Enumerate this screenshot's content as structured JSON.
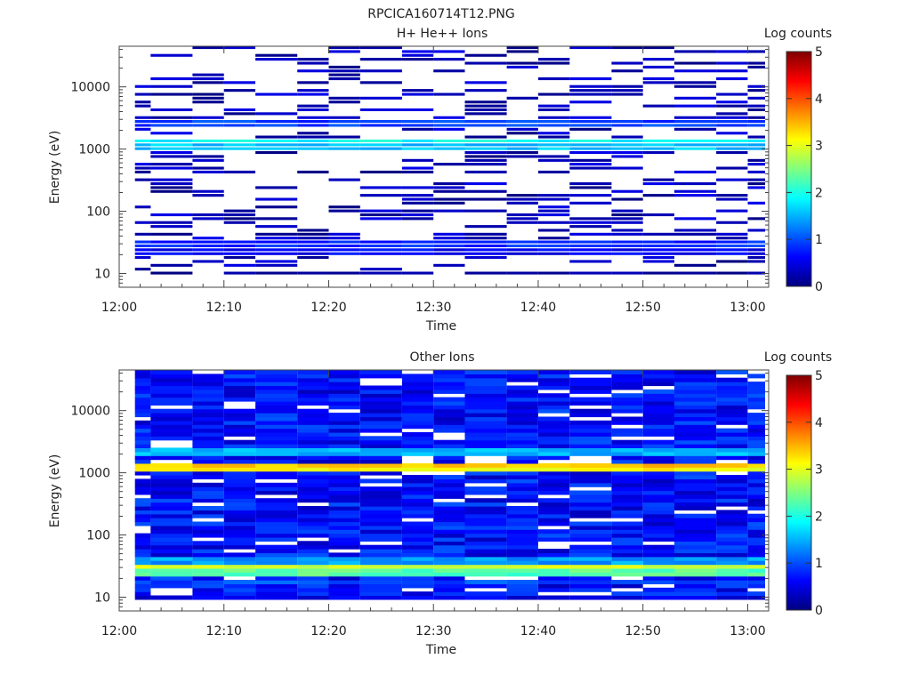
{
  "figure_title": "RPCICA160714T12.PNG",
  "chart_data": [
    {
      "type": "heatmap",
      "title": "H+ He++ Ions",
      "xlabel": "Time",
      "ylabel": "Energy (eV)",
      "xticks": [
        "12:00",
        "12:10",
        "12:20",
        "12:30",
        "12:40",
        "12:50",
        "13:00"
      ],
      "xlim": [
        "12:00",
        "13:02"
      ],
      "yscale": "log",
      "ylim": [
        6,
        45000
      ],
      "yticks": [
        "10",
        "100",
        "1000",
        "10000"
      ],
      "colorbar": {
        "label": "Log counts",
        "range": [
          0,
          5
        ],
        "ticks": [
          "0",
          "1",
          "2",
          "3",
          "4",
          "5"
        ]
      },
      "colormap": "jet",
      "note_sparse": true,
      "time_columns": [
        "12:00",
        "12:03",
        "12:07",
        "12:10",
        "12:13",
        "12:17",
        "12:20",
        "12:23",
        "12:27",
        "12:30",
        "12:33",
        "12:37",
        "12:40",
        "12:43",
        "12:47",
        "12:50",
        "12:53",
        "12:57",
        "13:00"
      ],
      "bands": [
        {
          "energy_eV": 10,
          "log_counts": 0.1
        },
        {
          "energy_eV": 22,
          "log_counts": 0.6
        },
        {
          "energy_eV": 30,
          "log_counts": 0.8
        },
        {
          "energy_eV": 1100,
          "log_counts": 1.6
        },
        {
          "energy_eV": 1300,
          "log_counts": 1.9
        },
        {
          "energy_eV": 2500,
          "log_counts": 0.9
        }
      ]
    },
    {
      "type": "heatmap",
      "title": "Other Ions",
      "xlabel": "Time",
      "ylabel": "Energy (eV)",
      "xticks": [
        "12:00",
        "12:10",
        "12:20",
        "12:30",
        "12:40",
        "12:50",
        "13:00"
      ],
      "xlim": [
        "12:00",
        "13:02"
      ],
      "yscale": "log",
      "ylim": [
        6,
        45000
      ],
      "yticks": [
        "10",
        "100",
        "1000",
        "10000"
      ],
      "colorbar": {
        "label": "Log counts",
        "range": [
          0,
          5
        ],
        "ticks": [
          "0",
          "1",
          "2",
          "3",
          "4",
          "5"
        ]
      },
      "colormap": "jet",
      "note_sparse": false,
      "time_columns": [
        "12:00",
        "12:03",
        "12:07",
        "12:10",
        "12:13",
        "12:17",
        "12:20",
        "12:23",
        "12:27",
        "12:30",
        "12:33",
        "12:37",
        "12:40",
        "12:43",
        "12:47",
        "12:50",
        "12:53",
        "12:57",
        "13:00"
      ],
      "bands": [
        {
          "energy_eV": 10,
          "log_counts": 0.5
        },
        {
          "energy_eV": 17,
          "log_counts": 1.0
        },
        {
          "energy_eV": 26,
          "log_counts": 2.3
        },
        {
          "energy_eV": 32,
          "log_counts": 2.9
        },
        {
          "energy_eV": 40,
          "log_counts": 1.4
        },
        {
          "energy_eV": 1150,
          "log_counts": 3.1
        },
        {
          "energy_eV": 1350,
          "log_counts": 3.4
        },
        {
          "energy_eV": 2200,
          "log_counts": 1.5
        },
        {
          "energy_eV": 15000,
          "log_counts": 0.8
        }
      ]
    }
  ]
}
